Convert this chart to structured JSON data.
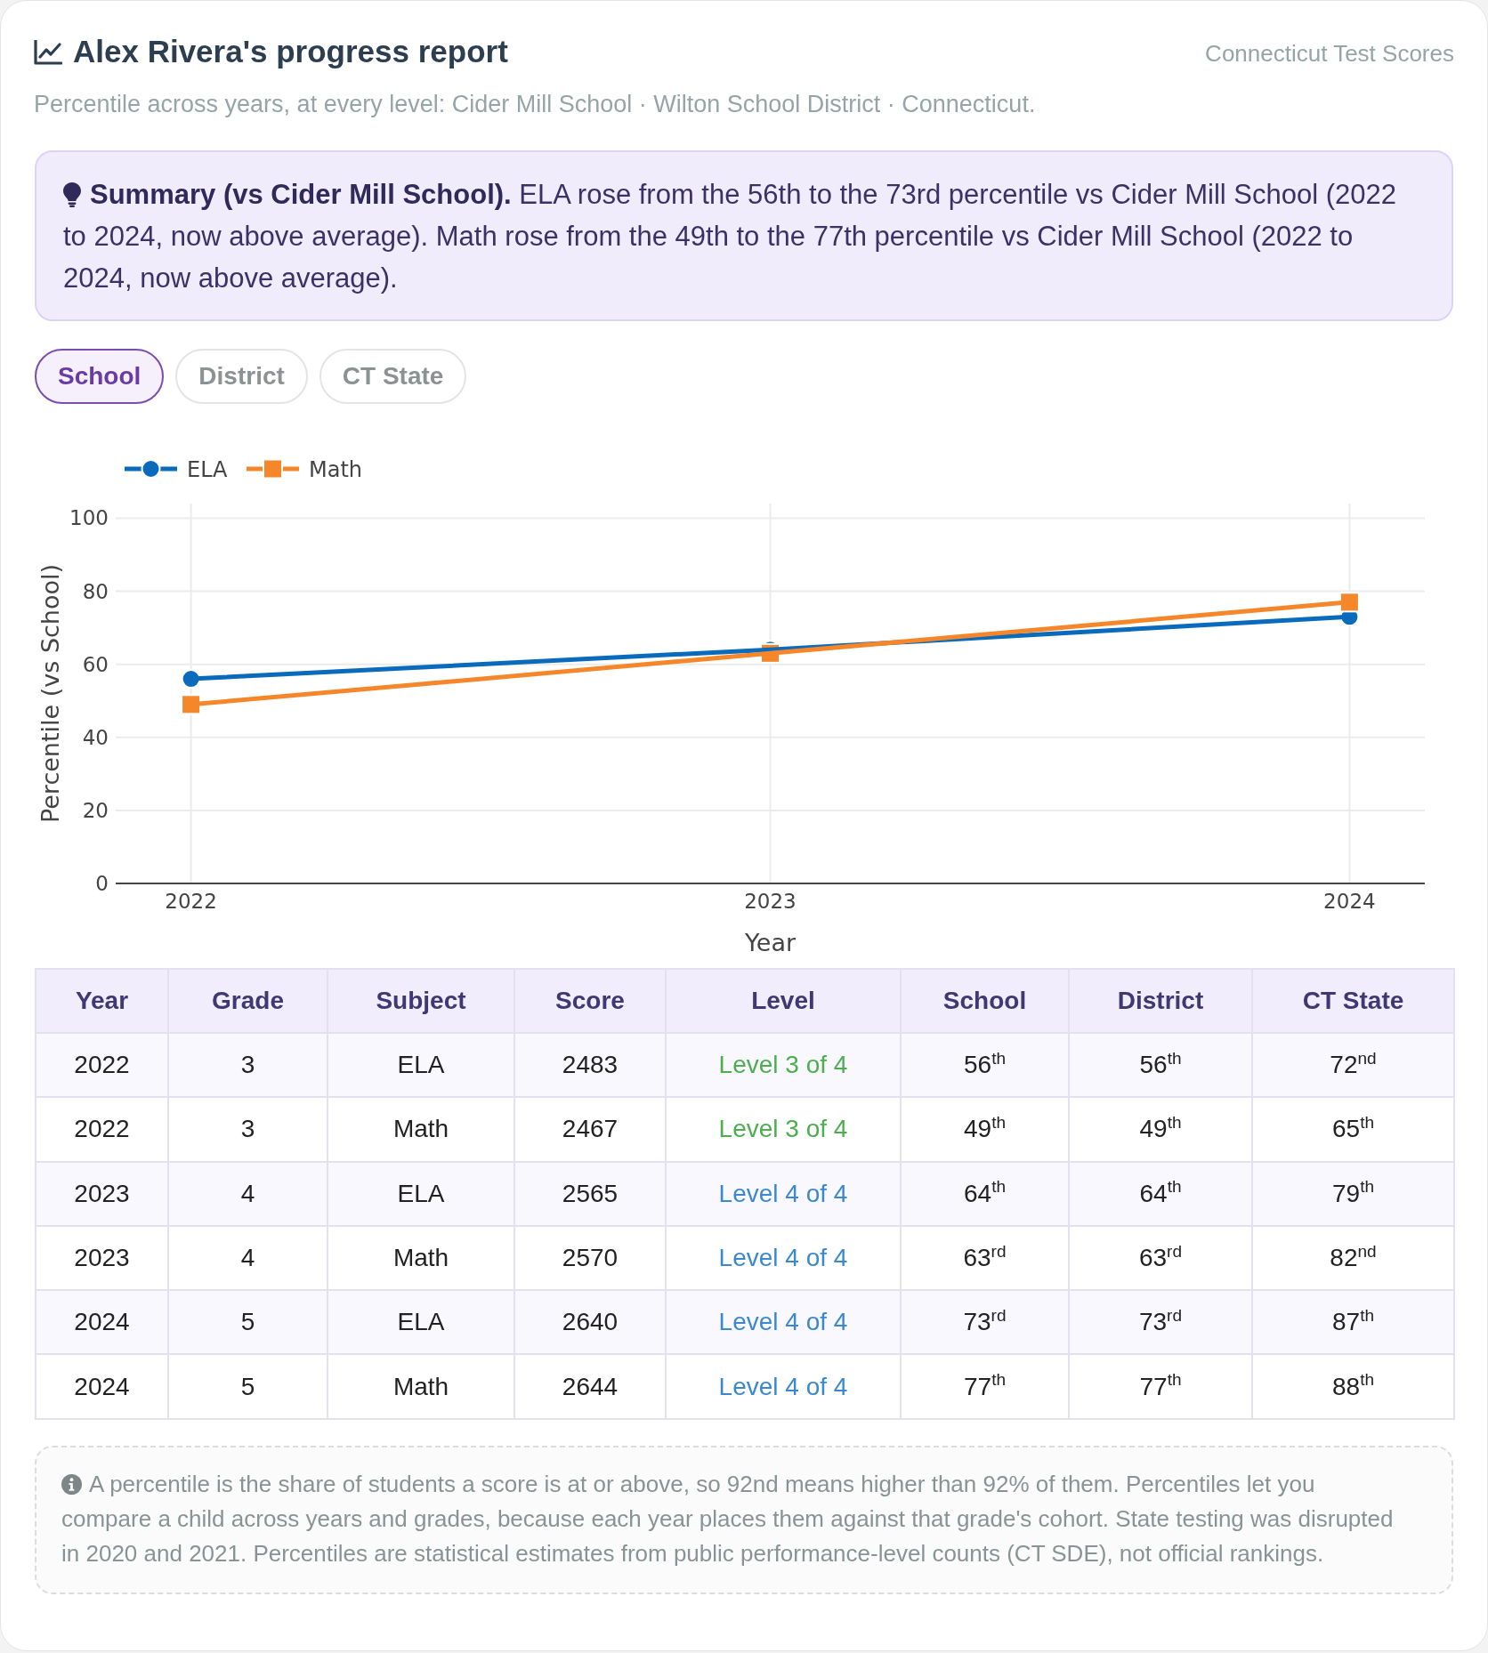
{
  "chart_data": [
    {
      "type": "line",
      "title": "Alex Rivera's progress report",
      "subtitle": "Percentile across years, at every level: Cider Mill School · Wilton School District · Connecticut.",
      "annotations": [
        "Connecticut Test Scores",
        "Summary (vs Cider Mill School). ELA rose from the 56th to the 73rd percentile vs Cider Mill School (2022 to 2024, now above average). Math rose from the 49th to the 77th percentile vs Cider Mill School (2022 to 2024, now above average).",
        "School",
        "District",
        "CT State"
      ],
      "x": [
        2022,
        2023,
        2024
      ],
      "xlim": [
        2021.87,
        2024.13
      ],
      "xticks": [
        2022,
        2023,
        2024
      ],
      "ylim": [
        0,
        104
      ],
      "yticks": [
        0,
        20,
        40,
        60,
        80,
        100
      ],
      "xlabel": "Year",
      "ylabel": "Percentile (vs School)",
      "grid": true,
      "legend": "top left",
      "series": [
        {
          "name": "ELA",
          "color": "#0a6bbd",
          "marker": "circle",
          "values": [
            56,
            64,
            73
          ]
        },
        {
          "name": "Math",
          "color": "#f5872a",
          "marker": "square",
          "values": [
            49,
            63,
            77
          ]
        }
      ]
    },
    {
      "type": "other",
      "categories": [
        "Year",
        "Grade",
        "Subject",
        "Score",
        "Level",
        "School",
        "District",
        "CT State"
      ],
      "cell_labels": [
        [
          "2022",
          "3",
          "ELA",
          "2483",
          "Level 3 of 4",
          "56$^{th}$",
          "56$^{th}$",
          "72$^{nd}$"
        ],
        [
          "2022",
          "3",
          "Math",
          "2467",
          "Level 3 of 4",
          "49$^{th}$",
          "49$^{th}$",
          "65$^{th}$"
        ],
        [
          "2023",
          "4",
          "ELA",
          "2565",
          "Level 4 of 4",
          "64$^{th}$",
          "64$^{th}$",
          "79$^{th}$"
        ],
        [
          "2023",
          "4",
          "Math",
          "2570",
          "Level 4 of 4",
          "63$^{rd}$",
          "63$^{rd}$",
          "82$^{nd}$"
        ],
        [
          "2024",
          "5",
          "ELA",
          "2640",
          "Level 4 of 4",
          "73$^{rd}$",
          "73$^{rd}$",
          "87$^{th}$"
        ],
        [
          "2024",
          "5",
          "Math",
          "2644",
          "Level 4 of 4",
          "77$^{th}$",
          "77$^{th}$",
          "88$^{th}$"
        ]
      ],
      "annotations": [
        "A percentile is the share of students a score is at or above, so 92nd means higher than 92% of them. Percentiles let you compare a child across years and grades, because each year places them against that grade's cohort. State testing was disrupted in 2020 and 2021. Percentiles are statistical estimates from public performance-level counts (CT SDE), not official rankings."
      ]
    }
  ]
}
